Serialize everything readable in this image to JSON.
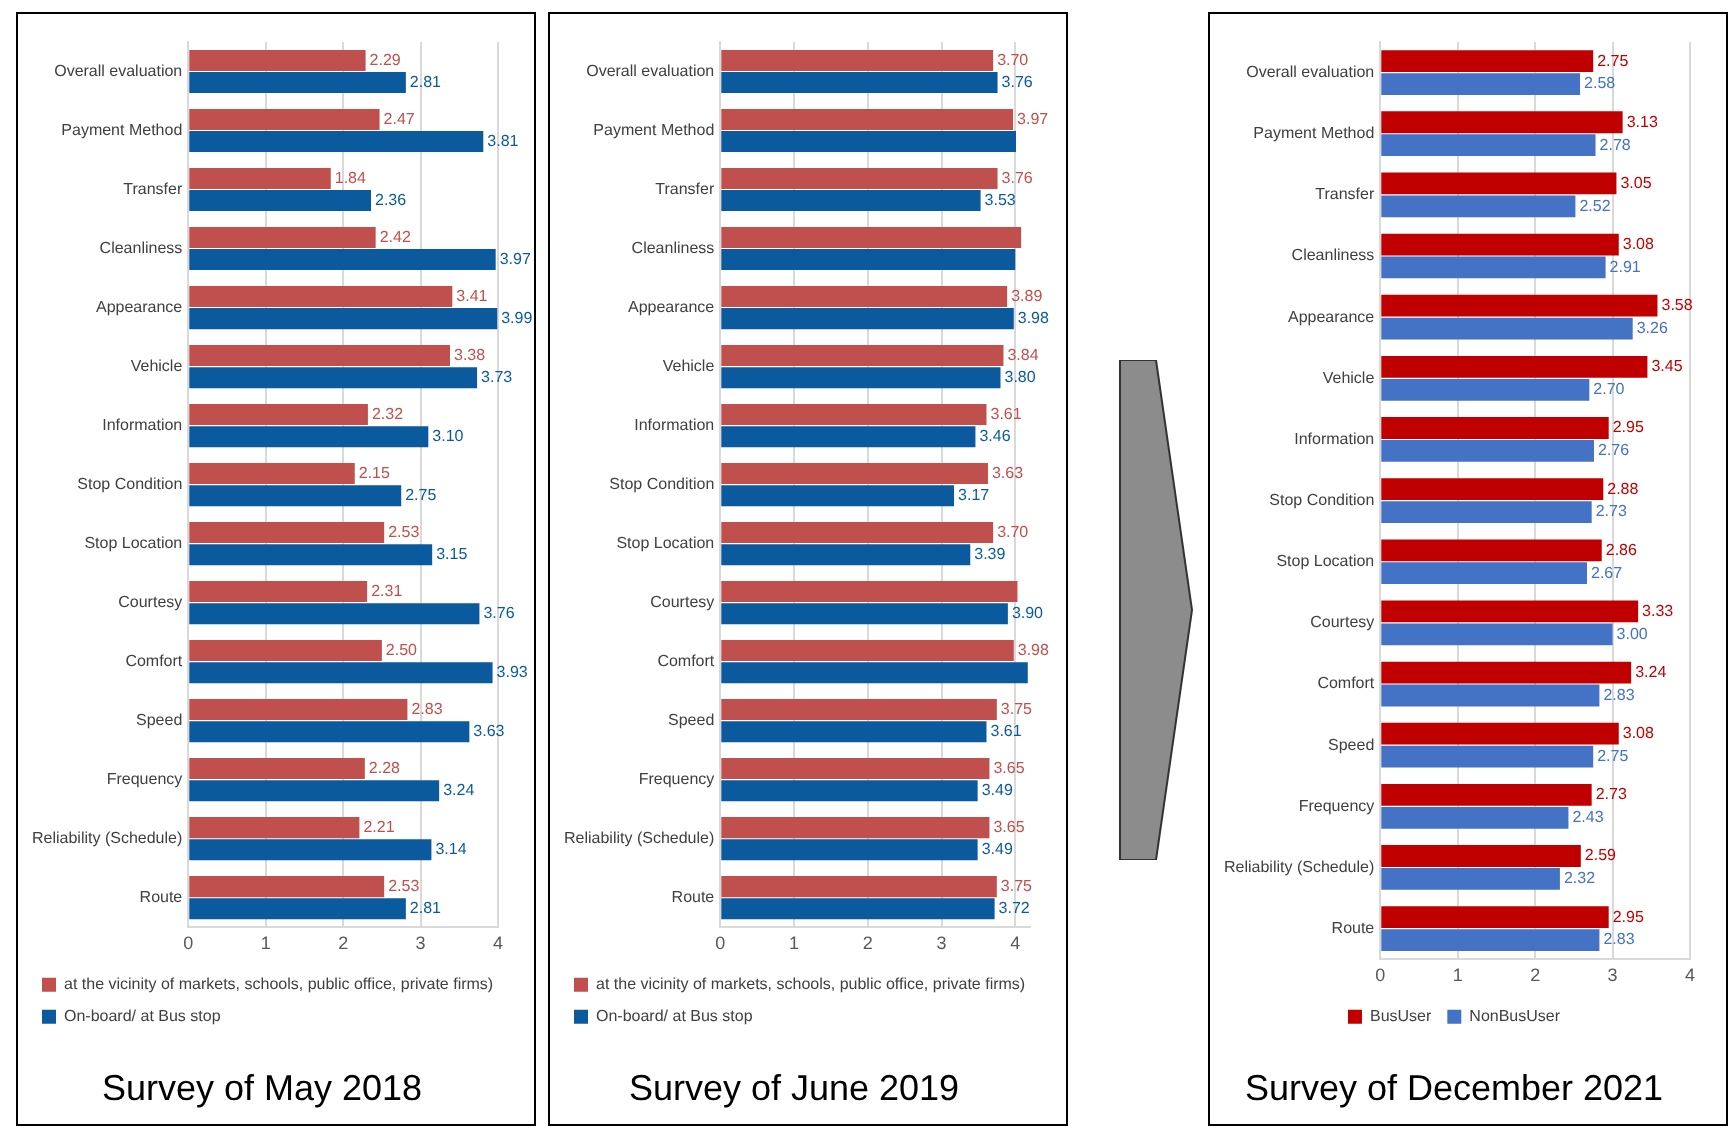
{
  "chart_data": [
    {
      "type": "bar",
      "orientation": "horizontal",
      "title": "Survey of May 2018",
      "categories": [
        "Overall evaluation",
        "Payment Method",
        "Transfer",
        "Cleanliness",
        "Appearance",
        "Vehicle",
        "Information",
        "Stop Condition",
        "Stop Location",
        "Courtesy",
        "Comfort",
        "Speed",
        "Frequency",
        "Reliability (Schedule)",
        "Route"
      ],
      "xlim": [
        0,
        4
      ],
      "xticks": [
        0,
        1,
        2,
        3,
        4
      ],
      "grid": "x",
      "legend": "bottom",
      "series": [
        {
          "name": "at the vicinity of markets, schools, public office, private firms)",
          "color": "#c0504d",
          "values": [
            2.29,
            2.47,
            1.84,
            2.42,
            3.41,
            3.38,
            2.32,
            2.15,
            2.53,
            2.31,
            2.5,
            2.83,
            2.28,
            2.21,
            2.53
          ],
          "value_labels": [
            "2.29",
            "2.47",
            "1.84",
            "2.42",
            "3.41",
            "3.38",
            "2.32",
            "2.15",
            "2.53",
            "2.31",
            "2.50",
            "2.83",
            "2.28",
            "2.21",
            "2.53"
          ]
        },
        {
          "name": "On-board/ at Bus stop",
          "color": "#0b5a9e",
          "values": [
            2.81,
            3.81,
            2.36,
            3.97,
            3.99,
            3.73,
            3.1,
            2.75,
            3.15,
            3.76,
            3.93,
            3.63,
            3.24,
            3.14,
            2.81
          ],
          "value_labels": [
            "2.81",
            "3.81",
            "2.36",
            "3.97",
            "3.99",
            "3.73",
            "3.10",
            "2.75",
            "3.15",
            "3.76",
            "3.93",
            "3.63",
            "3.24",
            "3.14",
            "2.81"
          ]
        }
      ]
    },
    {
      "type": "bar",
      "orientation": "horizontal",
      "title": "Survey of June 2019",
      "categories": [
        "Overall evaluation",
        "Payment Method",
        "Transfer",
        "Cleanliness",
        "Appearance",
        "Vehicle",
        "Information",
        "Stop Condition",
        "Stop Location",
        "Courtesy",
        "Comfort",
        "Speed",
        "Frequency",
        "Reliability (Schedule)",
        "Route"
      ],
      "xlim": [
        0,
        4.2
      ],
      "xticks": [
        0,
        1,
        2,
        3,
        4
      ],
      "grid": "x",
      "legend": "bottom",
      "series": [
        {
          "name": "at the vicinity of markets, schools, public office, private firms)",
          "color": "#c0504d",
          "values": [
            3.7,
            3.97,
            3.76,
            4.08,
            3.89,
            3.84,
            3.61,
            3.63,
            3.7,
            4.03,
            3.98,
            3.75,
            3.65,
            3.65,
            3.75
          ],
          "value_labels": [
            "3.70",
            "3.97",
            "3.76",
            null,
            "3.89",
            "3.84",
            "3.61",
            "3.63",
            "3.70",
            null,
            "3.98",
            "3.75",
            "3.65",
            "3.65",
            "3.75"
          ]
        },
        {
          "name": "On-board/ at Bus stop",
          "color": "#0b5a9e",
          "values": [
            3.76,
            4.01,
            3.53,
            4.0,
            3.98,
            3.8,
            3.46,
            3.17,
            3.39,
            3.9,
            4.17,
            3.61,
            3.49,
            3.49,
            3.72
          ],
          "value_labels": [
            "3.76",
            null,
            "3.53",
            null,
            "3.98",
            "3.80",
            "3.46",
            "3.17",
            "3.39",
            "3.90",
            null,
            "3.61",
            "3.49",
            "3.49",
            "3.72"
          ]
        }
      ]
    },
    {
      "type": "bar",
      "orientation": "horizontal",
      "title": "Survey of December 2021",
      "categories": [
        "Overall evaluation",
        "Payment Method",
        "Transfer",
        "Cleanliness",
        "Appearance",
        "Vehicle",
        "Information",
        "Stop Condition",
        "Stop Location",
        "Courtesy",
        "Comfort",
        "Speed",
        "Frequency",
        "Reliability (Schedule)",
        "Route"
      ],
      "xlim": [
        0,
        4
      ],
      "xticks": [
        0,
        1,
        2,
        3,
        4
      ],
      "grid": "x",
      "legend": "bottom",
      "series": [
        {
          "name": "BusUser",
          "color": "#c00000",
          "values": [
            2.75,
            3.13,
            3.05,
            3.08,
            3.58,
            3.45,
            2.95,
            2.88,
            2.86,
            3.33,
            3.24,
            3.08,
            2.73,
            2.59,
            2.95
          ],
          "value_labels": [
            "2.75",
            "3.13",
            "3.05",
            "3.08",
            "3.58",
            "3.45",
            "2.95",
            "2.88",
            "2.86",
            "3.33",
            "3.24",
            "3.08",
            "2.73",
            "2.59",
            "2.95"
          ]
        },
        {
          "name": "NonBusUser",
          "color": "#4472c4",
          "values": [
            2.58,
            2.78,
            2.52,
            2.91,
            3.26,
            2.7,
            2.76,
            2.73,
            2.67,
            3.0,
            2.83,
            2.75,
            2.43,
            2.32,
            2.83
          ],
          "value_labels": [
            "2.58",
            "2.78",
            "2.52",
            "2.91",
            "3.26",
            "2.70",
            "2.76",
            "2.73",
            "2.67",
            "3.00",
            "2.83",
            "2.75",
            "2.43",
            "2.32",
            "2.83"
          ]
        }
      ]
    }
  ]
}
